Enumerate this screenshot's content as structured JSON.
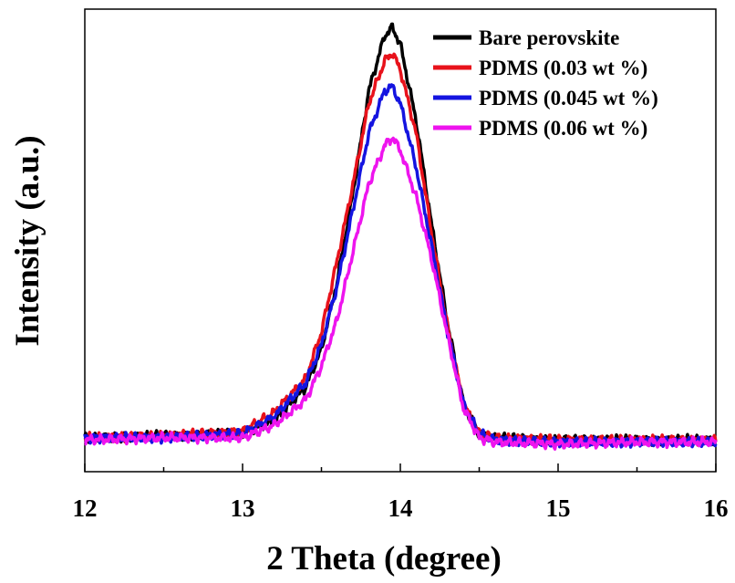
{
  "chart_data": {
    "type": "line",
    "title": "",
    "xlabel": "2 Theta (degree)",
    "ylabel": "Intensity (a.u.)",
    "xlim": [
      12,
      16
    ],
    "ylim": [
      0,
      1.05
    ],
    "xticks": [
      12,
      13,
      14,
      15,
      16
    ],
    "x_minor_ticks": [
      12.5,
      13.5,
      14.5,
      15.5
    ],
    "y_ticks_shown": false,
    "grid": false,
    "legend_position": "top-right",
    "peak_center": 13.95,
    "x": [
      12.0,
      12.5,
      13.0,
      13.2,
      13.4,
      13.5,
      13.6,
      13.7,
      13.8,
      13.9,
      13.95,
      14.0,
      14.1,
      14.2,
      14.3,
      14.4,
      14.5,
      14.6,
      15.0,
      15.5,
      16.0
    ],
    "series": [
      {
        "name": "Bare perovskite",
        "color": "#000000",
        "values": [
          0.08,
          0.085,
          0.09,
          0.12,
          0.2,
          0.29,
          0.45,
          0.66,
          0.9,
          1.03,
          1.05,
          1.01,
          0.83,
          0.58,
          0.35,
          0.16,
          0.09,
          0.08,
          0.075,
          0.075,
          0.075
        ]
      },
      {
        "name": "PDMS (0.03 wt %)",
        "color": "#e8121b",
        "values": [
          0.08,
          0.085,
          0.095,
          0.14,
          0.22,
          0.33,
          0.5,
          0.68,
          0.87,
          0.97,
          0.99,
          0.95,
          0.8,
          0.56,
          0.34,
          0.16,
          0.09,
          0.08,
          0.075,
          0.075,
          0.075
        ]
      },
      {
        "name": "PDMS (0.045 wt %)",
        "color": "#1414e0",
        "values": [
          0.08,
          0.08,
          0.09,
          0.13,
          0.21,
          0.3,
          0.44,
          0.62,
          0.8,
          0.9,
          0.91,
          0.87,
          0.72,
          0.53,
          0.33,
          0.16,
          0.09,
          0.075,
          0.07,
          0.07,
          0.07
        ]
      },
      {
        "name": "PDMS (0.06 wt %)",
        "color": "#ee14ee",
        "values": [
          0.075,
          0.08,
          0.08,
          0.11,
          0.17,
          0.25,
          0.36,
          0.52,
          0.68,
          0.77,
          0.79,
          0.76,
          0.65,
          0.5,
          0.32,
          0.15,
          0.08,
          0.07,
          0.065,
          0.07,
          0.07
        ]
      }
    ]
  }
}
